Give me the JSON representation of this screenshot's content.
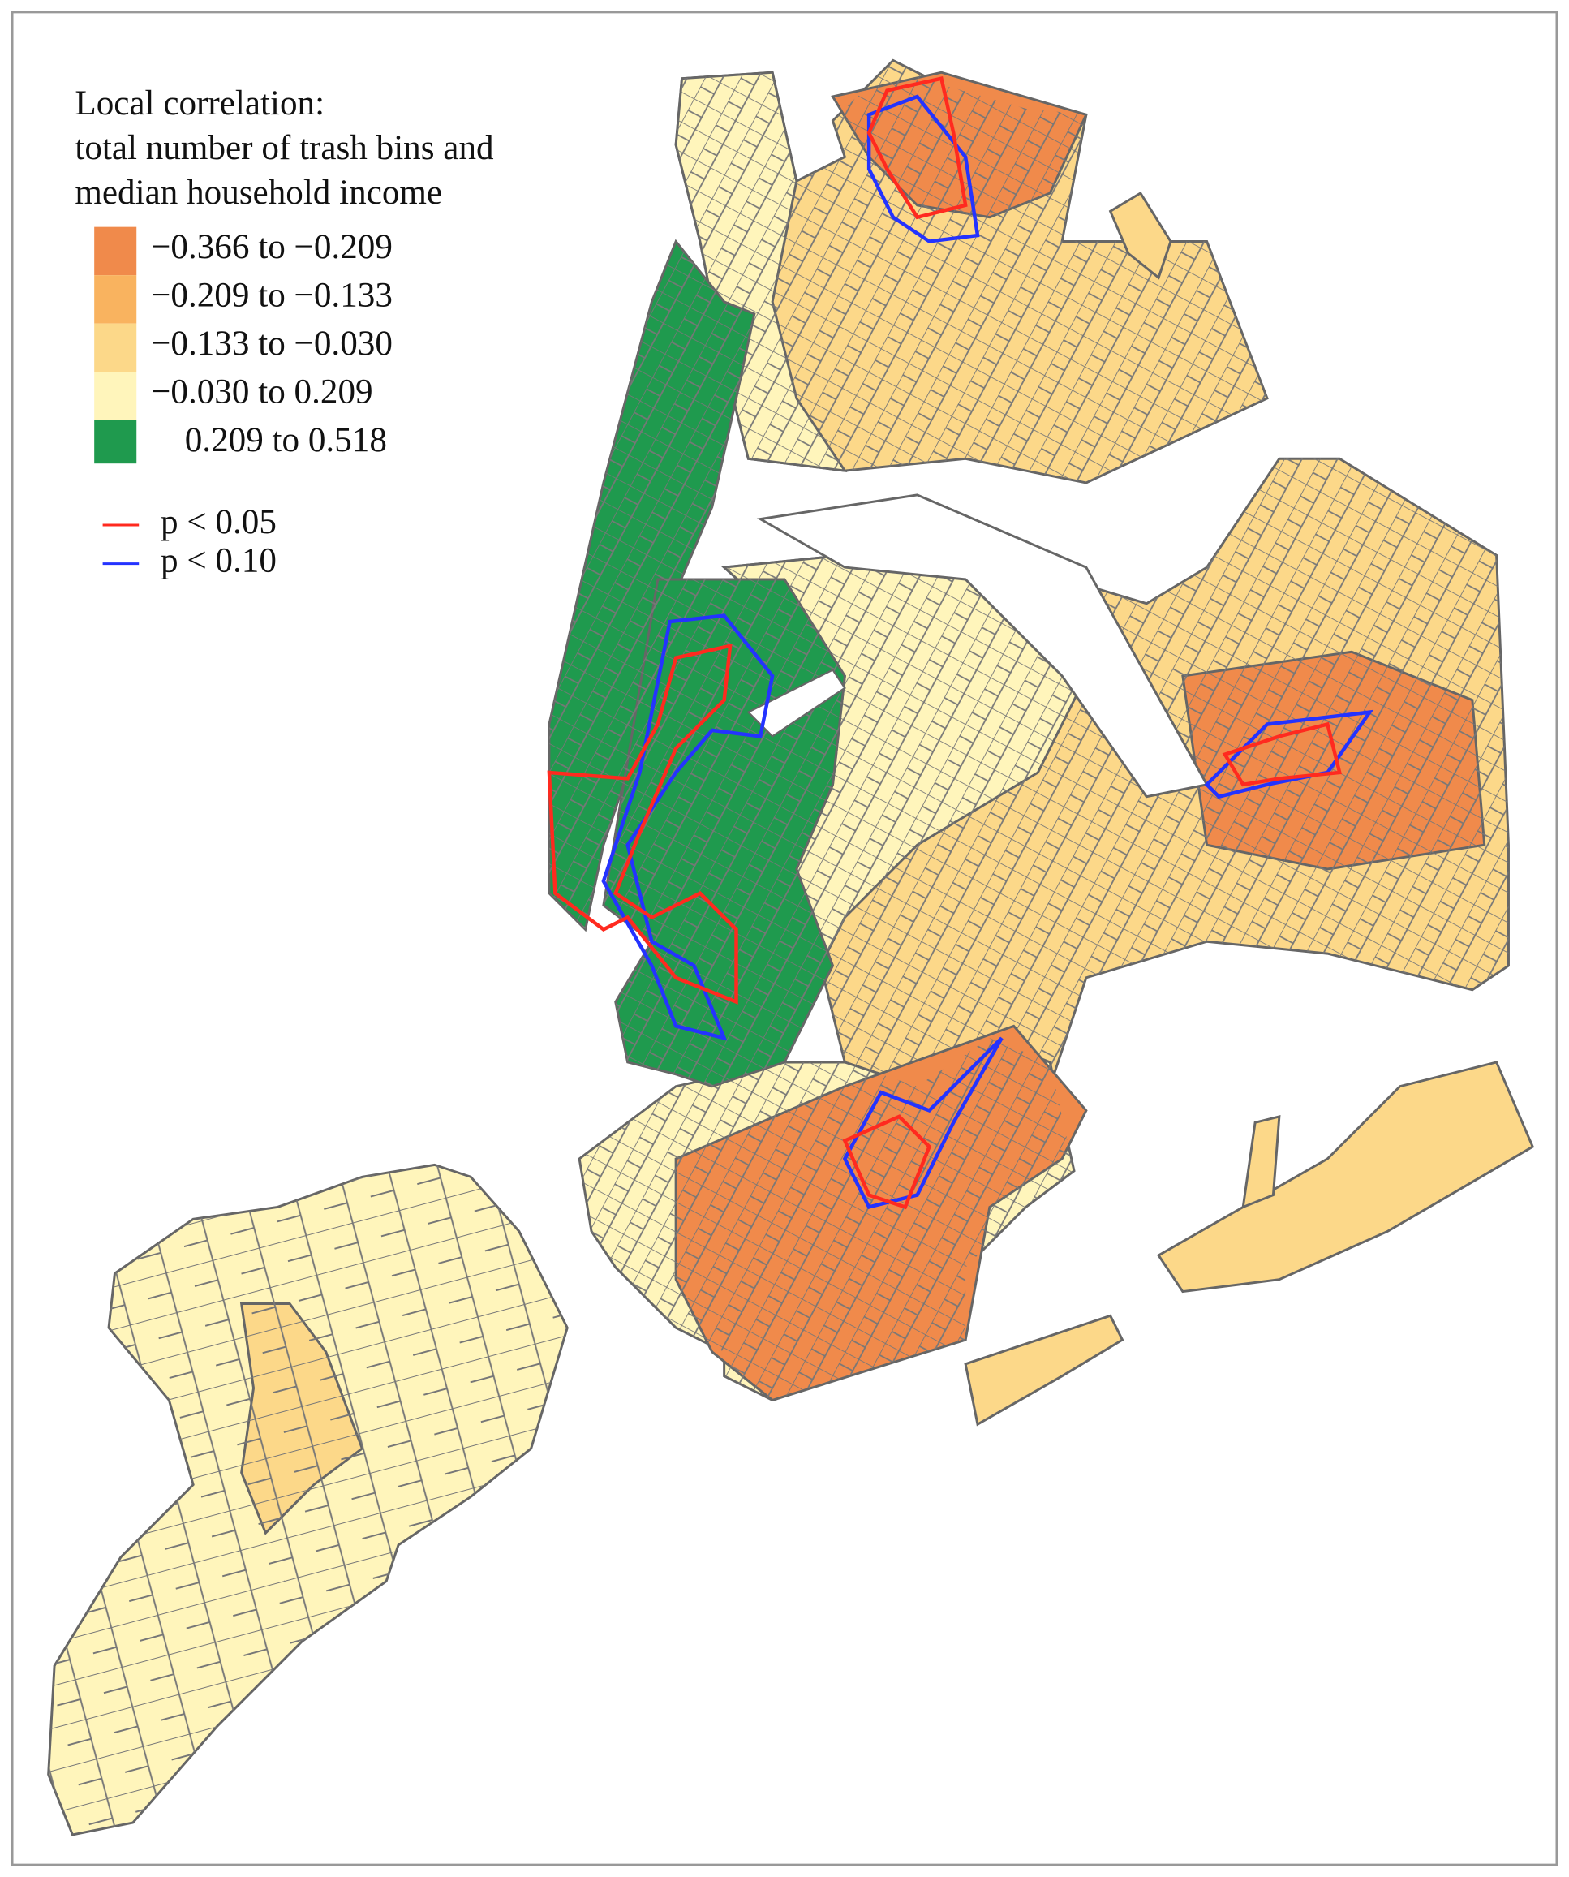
{
  "legend": {
    "title": [
      "Local correlation:",
      "total number of trash bins and",
      "median household income"
    ],
    "classes": [
      {
        "label": "−0.366 to −0.209",
        "color": "#f08a4b"
      },
      {
        "label": "−0.209 to −0.133",
        "color": "#f9b35f"
      },
      {
        "label": "−0.133 to −0.030",
        "color": "#fcd889"
      },
      {
        "label": "−0.030 to 0.209",
        "color": "#fff5bb"
      },
      {
        "label": "0.209 to 0.518",
        "color": "#1f9a4e"
      }
    ],
    "significance": [
      {
        "label": "p < 0.05",
        "color": "#ff2a1f"
      },
      {
        "label": "p < 0.10",
        "color": "#2433ff"
      }
    ]
  }
}
